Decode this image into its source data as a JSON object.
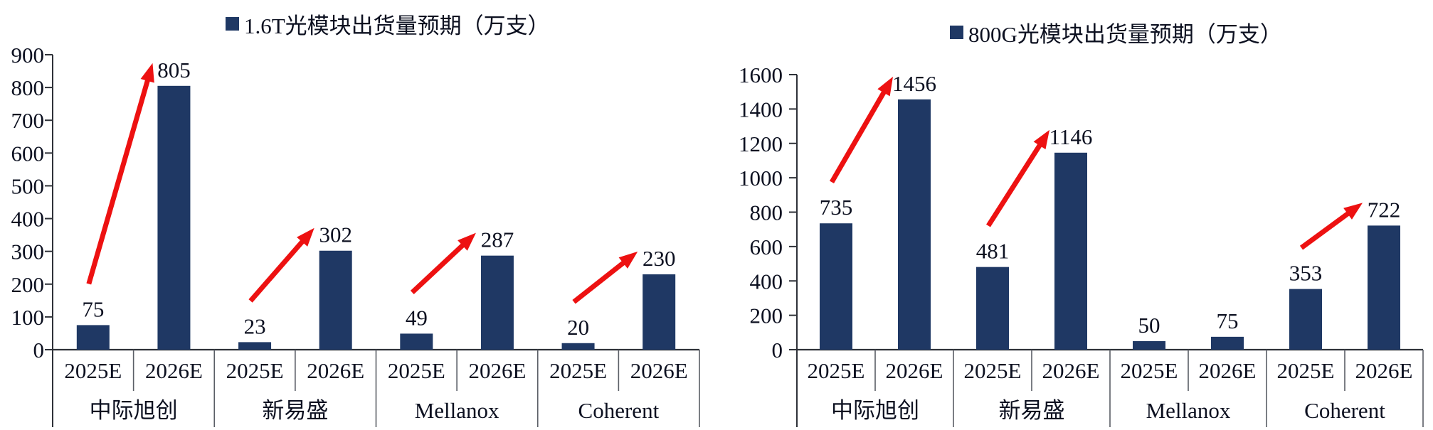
{
  "page": {
    "background": "#ffffff"
  },
  "colors": {
    "bar": "#1F3864",
    "arrow": "#ED1111",
    "axis_line": "#2e3138",
    "divider_line": "#5a5e66",
    "text": "#0c1020"
  },
  "chart_data": [
    {
      "type": "bar",
      "title": "1.6T光模块出货量预期（万支）",
      "legend_label": "1.6T光模块出货量预期（万支）",
      "legend_position": "top",
      "grid": false,
      "categories": [
        "中际旭创",
        "新易盛",
        "Mellanox",
        "Coherent"
      ],
      "x_sub_labels": [
        "2025E",
        "2026E"
      ],
      "series": [
        {
          "name": "2025E",
          "values": [
            75,
            23,
            49,
            20
          ]
        },
        {
          "name": "2026E",
          "values": [
            805,
            302,
            287,
            230
          ]
        }
      ],
      "data_labels": [
        [
          "75",
          "805"
        ],
        [
          "23",
          "302"
        ],
        [
          "49",
          "287"
        ],
        [
          "20",
          "230"
        ]
      ],
      "ylim": [
        0,
        900
      ],
      "ytick_step": 100,
      "ytick_labels": [
        "0",
        "100",
        "200",
        "300",
        "400",
        "500",
        "600",
        "700",
        "800",
        "900"
      ],
      "growth_arrows": [
        true,
        true,
        true,
        true
      ]
    },
    {
      "type": "bar",
      "title": "800G光模块出货量预期（万支）",
      "legend_label": "800G光模块出货量预期（万支）",
      "legend_position": "top",
      "grid": false,
      "categories": [
        "中际旭创",
        "新易盛",
        "Mellanox",
        "Coherent"
      ],
      "x_sub_labels": [
        "2025E",
        "2026E"
      ],
      "series": [
        {
          "name": "2025E",
          "values": [
            735,
            481,
            50,
            353
          ]
        },
        {
          "name": "2026E",
          "values": [
            1456,
            1146,
            75,
            722
          ]
        }
      ],
      "data_labels": [
        [
          "735",
          "1456"
        ],
        [
          "481",
          "1146"
        ],
        [
          "50",
          "75"
        ],
        [
          "353",
          "722"
        ]
      ],
      "ylim": [
        0,
        1600
      ],
      "ytick_step": 200,
      "ytick_labels": [
        "0",
        "200",
        "400",
        "600",
        "800",
        "1000",
        "1200",
        "1400",
        "1600"
      ],
      "growth_arrows": [
        true,
        true,
        false,
        true
      ]
    }
  ]
}
